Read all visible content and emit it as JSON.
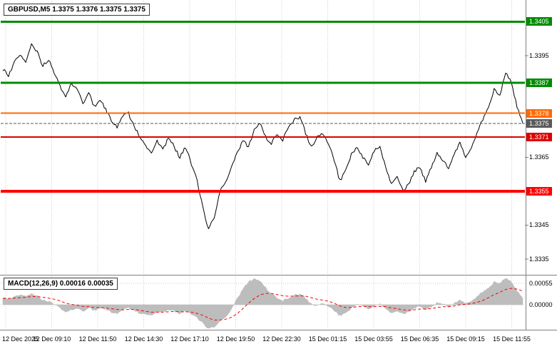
{
  "header": {
    "symbol_line": "GBPUSD,M5 1.3375 1.3376 1.3375 1.3375",
    "symbol": "GBPUSD",
    "timeframe": "M5",
    "ohlc": {
      "open": "1.3375",
      "high": "1.3376",
      "low": "1.3375",
      "close": "1.3375"
    }
  },
  "chart_data": {
    "type": "line",
    "title": "GBPUSD,M5 1.3375 1.3376 1.3375 1.3375",
    "x_labels": [
      "12 Dec 2025",
      "12 Dec 09:10",
      "12 Dec 11:50",
      "12 Dec 14:30",
      "12 Dec 17:10",
      "12 Dec 19:50",
      "12 Dec 22:30",
      "15 Dec 01:15",
      "15 Dec 03:55",
      "15 Dec 06:35",
      "15 Dec 09:15",
      "15 Dec 11:55"
    ],
    "price_axis": {
      "ylim": [
        1.3331,
        1.3408
      ],
      "plain_labels": [
        {
          "text": "1.3395",
          "value": 1.3395
        },
        {
          "text": "1.3365",
          "value": 1.3365
        },
        {
          "text": "1.3345",
          "value": 1.3345
        },
        {
          "text": "1.3335",
          "value": 1.3335
        }
      ]
    },
    "levels": [
      {
        "text": "1.3405",
        "value": 1.3405,
        "color": "#008c00",
        "width": 3,
        "dash": null
      },
      {
        "text": "1.3387",
        "value": 1.3387,
        "color": "#008c00",
        "width": 3,
        "dash": null
      },
      {
        "text": "1.3378",
        "value": 1.3378,
        "color": "#ff6a00",
        "width": 2,
        "dash": null
      },
      {
        "text": "1.3375",
        "value": 1.3375,
        "color": "#5a5a5a",
        "width": 1,
        "dash": "4,2"
      },
      {
        "text": "1.3371",
        "value": 1.3371,
        "color": "#dd0000",
        "width": 2,
        "dash": null
      },
      {
        "text": "1.3355",
        "value": 1.3355,
        "color": "#ff0000",
        "width": 4,
        "dash": null
      }
    ],
    "price_series": [
      1.3391,
      1.3389,
      1.3393,
      1.3395,
      1.3393,
      1.3398,
      1.3396,
      1.3392,
      1.3394,
      1.339,
      1.3386,
      1.3383,
      1.3387,
      1.3385,
      1.3381,
      1.3384,
      1.338,
      1.3382,
      1.3379,
      1.3376,
      1.3374,
      1.3377,
      1.3378,
      1.3374,
      1.3371,
      1.3368,
      1.3366,
      1.337,
      1.3367,
      1.3371,
      1.3368,
      1.3365,
      1.3368,
      1.3363,
      1.3358,
      1.335,
      1.3344,
      1.3347,
      1.3355,
      1.3358,
      1.3362,
      1.3366,
      1.337,
      1.3368,
      1.3373,
      1.3375,
      1.3371,
      1.3369,
      1.3372,
      1.337,
      1.3374,
      1.3376,
      1.3377,
      1.3372,
      1.3368,
      1.3371,
      1.3372,
      1.3369,
      1.3364,
      1.3358,
      1.3361,
      1.3366,
      1.3368,
      1.3365,
      1.3363,
      1.3367,
      1.3368,
      1.3362,
      1.3357,
      1.3359,
      1.3355,
      1.3357,
      1.3361,
      1.3362,
      1.3358,
      1.3362,
      1.3366,
      1.3364,
      1.3362,
      1.3366,
      1.3369,
      1.3365,
      1.3368,
      1.3372,
      1.3376,
      1.338,
      1.3385,
      1.3383,
      1.339,
      1.3387,
      1.338,
      1.3375
    ],
    "macd": {
      "label": "MACD(12,26,9) 0.00016 0.00035",
      "main_value": "0.00016",
      "signal_value": "0.00035",
      "ylim": [
        -0.00062,
        0.00073
      ],
      "axis_labels": [
        {
          "text": "0.00055",
          "value": 0.00055
        },
        {
          "text": "0.00000",
          "value": 0.0
        }
      ],
      "main": [
        0.00018,
        0.00015,
        0.0002,
        0.00024,
        0.00022,
        0.00026,
        0.00022,
        0.00012,
        0.0001,
        2e-05,
        -8e-05,
        -0.00018,
        -0.00012,
        -0.0001,
        -0.00016,
        -8e-05,
        -0.00014,
        -8e-05,
        -0.00012,
        -0.00018,
        -0.00022,
        -0.00014,
        -8e-05,
        -0.00014,
        -0.00022,
        -0.00026,
        -0.00028,
        -0.00018,
        -0.0002,
        -0.00012,
        -0.00016,
        -0.00022,
        -0.00016,
        -0.00024,
        -0.00034,
        -0.00048,
        -0.0006,
        -0.00058,
        -0.00042,
        -0.0003,
        -0.00012,
        0.00014,
        0.0004,
        0.00058,
        0.00066,
        0.0006,
        0.00044,
        0.00028,
        0.00018,
        0.0001,
        0.00016,
        0.00024,
        0.00028,
        0.00016,
        2e-05,
        -2e-05,
        4e-05,
        -4e-05,
        -0.00016,
        -0.00028,
        -0.00022,
        -8e-05,
        2e-05,
        -2e-05,
        -0.0001,
        -4e-05,
        2e-05,
        -0.0001,
        -0.00022,
        -0.00018,
        -0.00024,
        -0.00018,
        -8e-05,
        -4e-05,
        -0.00012,
        -6e-05,
        4e-05,
        2e-05,
        -4e-05,
        4e-05,
        0.0001,
        4e-05,
        0.0001,
        0.0002,
        0.00032,
        0.00044,
        0.00058,
        0.00054,
        0.00068,
        0.00058,
        0.00036,
        0.00016
      ],
      "signal": [
        0.00016,
        0.00016,
        0.00017,
        0.00018,
        0.00019,
        0.00021,
        0.00021,
        0.00019,
        0.00017,
        0.00014,
        0.0001,
        4e-05,
        1e-05,
        -1e-05,
        -4e-05,
        -5e-05,
        -7e-05,
        -7e-05,
        -8e-05,
        -0.0001,
        -0.00012,
        -0.00013,
        -0.00012,
        -0.00012,
        -0.00014,
        -0.00017,
        -0.00019,
        -0.00019,
        -0.00019,
        -0.00018,
        -0.00017,
        -0.00018,
        -0.00018,
        -0.00019,
        -0.00022,
        -0.00027,
        -0.00034,
        -0.00039,
        -0.00039,
        -0.00037,
        -0.00032,
        -0.00023,
        -0.0001,
        4e-05,
        0.00016,
        0.00025,
        0.00029,
        0.00029,
        0.00026,
        0.00023,
        0.00022,
        0.00022,
        0.00023,
        0.00022,
        0.00018,
        0.00014,
        0.00012,
        9e-05,
        4e-05,
        -3e-05,
        -7e-05,
        -7e-05,
        -5e-05,
        -4e-05,
        -5e-05,
        -5e-05,
        -4e-05,
        -5e-05,
        -8e-05,
        -0.0001,
        -0.00013,
        -0.00014,
        -0.00013,
        -0.00011,
        -0.00011,
        -0.0001,
        -7e-05,
        -5e-05,
        -5e-05,
        -3e-05,
        0.0,
        1e-05,
        3e-05,
        6e-05,
        0.00011,
        0.00018,
        0.00026,
        0.00032,
        0.00039,
        0.00042,
        0.0004,
        0.00035
      ]
    },
    "colors": {
      "background": "#ffffff",
      "grid": "#c8c8c8",
      "bars": "#000000",
      "macd_histogram": "#bdbdbd",
      "macd_signal": "#ff0000",
      "panel_border": "#808080",
      "resistance_green": "#008c00",
      "orange_level": "#ff6a00",
      "support_red": "#ff0000",
      "current_price_bg": "#5a5a5a"
    }
  }
}
